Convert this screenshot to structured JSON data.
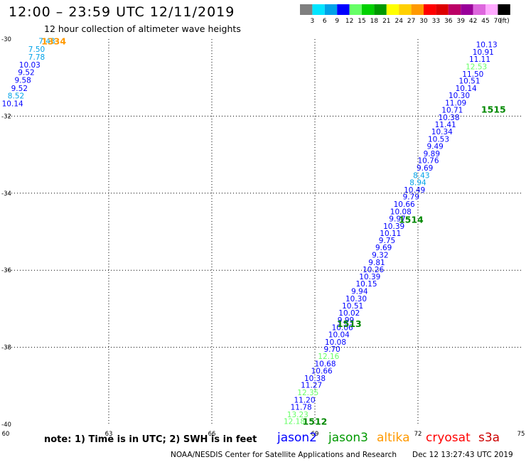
{
  "header": {
    "title": "12:00 – 23:59 UTC 12/11/2019",
    "subtitle": "12 hour collection of altimeter wave heights"
  },
  "legend": {
    "unit": "(ft)",
    "bins": [
      {
        "label": "3",
        "color": "#7f7f7f"
      },
      {
        "label": "6",
        "color": "#00e5ff"
      },
      {
        "label": "9",
        "color": "#00a2e8"
      },
      {
        "label": "12",
        "color": "#0000ff"
      },
      {
        "label": "15",
        "color": "#66ff66"
      },
      {
        "label": "18",
        "color": "#00d100"
      },
      {
        "label": "21",
        "color": "#009900"
      },
      {
        "label": "24",
        "color": "#ffff00"
      },
      {
        "label": "27",
        "color": "#ffd000"
      },
      {
        "label": "30",
        "color": "#ff9900"
      },
      {
        "label": "33",
        "color": "#ff0000"
      },
      {
        "label": "36",
        "color": "#dd0000"
      },
      {
        "label": "39",
        "color": "#bb0066"
      },
      {
        "label": "42",
        "color": "#990099"
      },
      {
        "label": "45",
        "color": "#dd66dd"
      },
      {
        "label": "70",
        "color": "#ffaaff"
      },
      {
        "label": "",
        "color": "#000000"
      }
    ]
  },
  "chart_data": {
    "type": "scatter",
    "xlim": [
      60,
      75
    ],
    "ylim": [
      -40,
      -30
    ],
    "x_ticks": [
      {
        "value": 60,
        "label": "60"
      },
      {
        "value": 63,
        "label": "63"
      },
      {
        "value": 66,
        "label": "66"
      },
      {
        "value": 69,
        "label": "69"
      },
      {
        "value": 72,
        "label": "72"
      },
      {
        "value": 75,
        "label": "75"
      }
    ],
    "y_ticks": [
      {
        "value": -30,
        "label": "-30"
      },
      {
        "value": -32,
        "label": "-32"
      },
      {
        "value": -34,
        "label": "-34"
      },
      {
        "value": -36,
        "label": "-36"
      },
      {
        "value": -38,
        "label": "-38"
      },
      {
        "value": -40,
        "label": "-40"
      }
    ],
    "grid": true,
    "pass_labels": [
      {
        "text": "1334",
        "lon": 61.4,
        "lat": -30.05,
        "color": "#ff9900"
      },
      {
        "text": "1515",
        "lon": 74.2,
        "lat": -31.82,
        "color": "#008800"
      },
      {
        "text": "1514",
        "lon": 71.8,
        "lat": -34.68,
        "color": "#008800"
      },
      {
        "text": "1513",
        "lon": 70.0,
        "lat": -37.38,
        "color": "#008800"
      },
      {
        "text": "1512",
        "lon": 69.0,
        "lat": -39.92,
        "color": "#008800"
      }
    ],
    "points": [
      {
        "lon": 61.2,
        "lat": -30.05,
        "swh": "7.43",
        "color": "#00a2e8"
      },
      {
        "lon": 60.9,
        "lat": -30.26,
        "swh": "7.50",
        "color": "#00a2e8"
      },
      {
        "lon": 60.9,
        "lat": -30.46,
        "swh": "7.78",
        "color": "#00a2e8"
      },
      {
        "lon": 60.7,
        "lat": -30.66,
        "swh": "10.03",
        "color": "#0000ff"
      },
      {
        "lon": 60.6,
        "lat": -30.86,
        "swh": "9.52",
        "color": "#0000ff"
      },
      {
        "lon": 60.5,
        "lat": -31.06,
        "swh": "9.58",
        "color": "#0000ff"
      },
      {
        "lon": 60.4,
        "lat": -31.27,
        "swh": "9.52",
        "color": "#0000ff"
      },
      {
        "lon": 60.3,
        "lat": -31.47,
        "swh": "8.52",
        "color": "#00a2e8"
      },
      {
        "lon": 60.2,
        "lat": -31.67,
        "swh": "10.14",
        "color": "#0000ff"
      },
      {
        "lon": 74.0,
        "lat": -30.14,
        "swh": "10.13",
        "color": "#0000ff"
      },
      {
        "lon": 73.9,
        "lat": -30.33,
        "swh": "10.91",
        "color": "#0000ff"
      },
      {
        "lon": 73.8,
        "lat": -30.52,
        "swh": "11.11",
        "color": "#0000ff"
      },
      {
        "lon": 73.7,
        "lat": -30.71,
        "swh": "12.53",
        "color": "#66ff66"
      },
      {
        "lon": 73.6,
        "lat": -30.9,
        "swh": "11.50",
        "color": "#0000ff"
      },
      {
        "lon": 73.5,
        "lat": -31.08,
        "swh": "10.51",
        "color": "#0000ff"
      },
      {
        "lon": 73.4,
        "lat": -31.27,
        "swh": "10.14",
        "color": "#0000ff"
      },
      {
        "lon": 73.2,
        "lat": -31.46,
        "swh": "10.30",
        "color": "#0000ff"
      },
      {
        "lon": 73.1,
        "lat": -31.65,
        "swh": "11.09",
        "color": "#0000ff"
      },
      {
        "lon": 73.0,
        "lat": -31.84,
        "swh": "10.71",
        "color": "#0000ff"
      },
      {
        "lon": 72.9,
        "lat": -32.03,
        "swh": "10.38",
        "color": "#0000ff"
      },
      {
        "lon": 72.8,
        "lat": -32.21,
        "swh": "11.41",
        "color": "#0000ff"
      },
      {
        "lon": 72.7,
        "lat": -32.4,
        "swh": "10.34",
        "color": "#0000ff"
      },
      {
        "lon": 72.6,
        "lat": -32.59,
        "swh": "10.53",
        "color": "#0000ff"
      },
      {
        "lon": 72.5,
        "lat": -32.78,
        "swh": "9.49",
        "color": "#0000ff"
      },
      {
        "lon": 72.4,
        "lat": -32.97,
        "swh": "9.89",
        "color": "#0000ff"
      },
      {
        "lon": 72.3,
        "lat": -33.15,
        "swh": "10.76",
        "color": "#0000ff"
      },
      {
        "lon": 72.2,
        "lat": -33.34,
        "swh": "9.69",
        "color": "#0000ff"
      },
      {
        "lon": 72.1,
        "lat": -33.53,
        "swh": "8.43",
        "color": "#00a2e8"
      },
      {
        "lon": 72.0,
        "lat": -33.72,
        "swh": "8.94",
        "color": "#00a2e8"
      },
      {
        "lon": 71.9,
        "lat": -33.91,
        "swh": "10.49",
        "color": "#0000ff"
      },
      {
        "lon": 71.8,
        "lat": -34.09,
        "swh": "9.79",
        "color": "#0000ff"
      },
      {
        "lon": 71.6,
        "lat": -34.28,
        "swh": "10.66",
        "color": "#0000ff"
      },
      {
        "lon": 71.5,
        "lat": -34.47,
        "swh": "10.08",
        "color": "#0000ff"
      },
      {
        "lon": 71.4,
        "lat": -34.66,
        "swh": "9.97",
        "color": "#0000ff"
      },
      {
        "lon": 71.3,
        "lat": -34.85,
        "swh": "10.39",
        "color": "#0000ff"
      },
      {
        "lon": 71.2,
        "lat": -35.04,
        "swh": "10.11",
        "color": "#0000ff"
      },
      {
        "lon": 71.1,
        "lat": -35.22,
        "swh": "9.75",
        "color": "#0000ff"
      },
      {
        "lon": 71.0,
        "lat": -35.41,
        "swh": "9.69",
        "color": "#0000ff"
      },
      {
        "lon": 70.9,
        "lat": -35.6,
        "swh": "9.32",
        "color": "#0000ff"
      },
      {
        "lon": 70.8,
        "lat": -35.79,
        "swh": "9.81",
        "color": "#0000ff"
      },
      {
        "lon": 70.7,
        "lat": -35.98,
        "swh": "10.26",
        "color": "#0000ff"
      },
      {
        "lon": 70.6,
        "lat": -36.16,
        "swh": "10.39",
        "color": "#0000ff"
      },
      {
        "lon": 70.5,
        "lat": -36.35,
        "swh": "10.15",
        "color": "#0000ff"
      },
      {
        "lon": 70.3,
        "lat": -36.54,
        "swh": "9.94",
        "color": "#0000ff"
      },
      {
        "lon": 70.2,
        "lat": -36.73,
        "swh": "10.30",
        "color": "#0000ff"
      },
      {
        "lon": 70.1,
        "lat": -36.92,
        "swh": "10.51",
        "color": "#0000ff"
      },
      {
        "lon": 70.0,
        "lat": -37.1,
        "swh": "10.02",
        "color": "#0000ff"
      },
      {
        "lon": 69.9,
        "lat": -37.29,
        "swh": "9.99",
        "color": "#0000ff"
      },
      {
        "lon": 69.8,
        "lat": -37.48,
        "swh": "10.06",
        "color": "#0000ff"
      },
      {
        "lon": 69.7,
        "lat": -37.67,
        "swh": "10.04",
        "color": "#0000ff"
      },
      {
        "lon": 69.6,
        "lat": -37.86,
        "swh": "10.08",
        "color": "#0000ff"
      },
      {
        "lon": 69.5,
        "lat": -38.04,
        "swh": "9.70",
        "color": "#0000ff"
      },
      {
        "lon": 69.4,
        "lat": -38.23,
        "swh": "12.16",
        "color": "#66ff66"
      },
      {
        "lon": 69.3,
        "lat": -38.42,
        "swh": "10.68",
        "color": "#0000ff"
      },
      {
        "lon": 69.2,
        "lat": -38.61,
        "swh": "10.66",
        "color": "#0000ff"
      },
      {
        "lon": 69.0,
        "lat": -38.8,
        "swh": "10.38",
        "color": "#0000ff"
      },
      {
        "lon": 68.9,
        "lat": -38.98,
        "swh": "11.27",
        "color": "#0000ff"
      },
      {
        "lon": 68.8,
        "lat": -39.17,
        "swh": "12.35",
        "color": "#66ff66"
      },
      {
        "lon": 68.7,
        "lat": -39.36,
        "swh": "11.20",
        "color": "#0000ff"
      },
      {
        "lon": 68.6,
        "lat": -39.55,
        "swh": "11.78",
        "color": "#0000ff"
      },
      {
        "lon": 68.5,
        "lat": -39.74,
        "swh": "13.23",
        "color": "#66ff66"
      },
      {
        "lon": 68.4,
        "lat": -39.92,
        "swh": "12.18",
        "color": "#66ff66"
      }
    ]
  },
  "footer": {
    "note": "note:  1) Time is in UTC;  2) SWH is in feet",
    "satellites": [
      {
        "name": "jason2",
        "color": "#0000ff"
      },
      {
        "name": "jason3",
        "color": "#009900"
      },
      {
        "name": "altika",
        "color": "#ff9900"
      },
      {
        "name": "cryosat",
        "color": "#ff0000"
      },
      {
        "name": "s3a",
        "color": "#cc0000"
      }
    ],
    "credit": "NOAA/NESDIS Center for Satellite Applications and Research",
    "timestamp": "Dec 12 13:27:43 UTC 2019"
  }
}
